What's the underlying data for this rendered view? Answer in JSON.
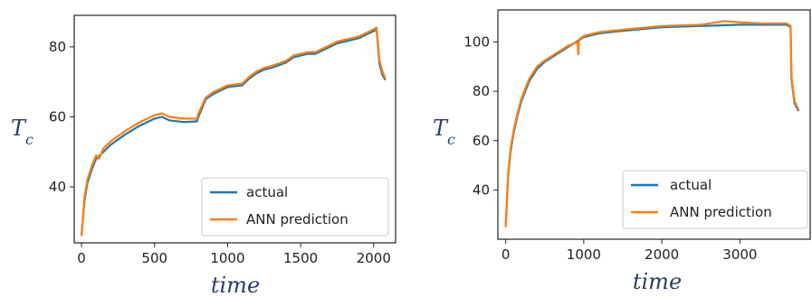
{
  "chart_data": [
    {
      "type": "line",
      "title": "",
      "xlabel": "time",
      "ylabel": "T_c",
      "xlim": [
        -50,
        2150
      ],
      "ylim": [
        24,
        89
      ],
      "xticks": [
        0,
        500,
        1000,
        1500,
        2000
      ],
      "yticks": [
        40,
        60,
        80
      ],
      "legend": "bottom-right",
      "series": [
        {
          "name": "actual",
          "color": "#1f77b4",
          "x": [
            0,
            20,
            40,
            70,
            100,
            150,
            200,
            300,
            400,
            500,
            550,
            600,
            700,
            790,
            800,
            850,
            900,
            1000,
            1100,
            1150,
            1200,
            1250,
            1300,
            1400,
            1450,
            1500,
            1550,
            1600,
            1700,
            1750,
            1800,
            1900,
            1950,
            2000,
            2020,
            2040,
            2060,
            2080
          ],
          "y": [
            26,
            36,
            41,
            45,
            48,
            50,
            52,
            55,
            57.5,
            59.5,
            60,
            59,
            58.5,
            58.7,
            60,
            65,
            66.5,
            68.5,
            69,
            71,
            72.5,
            73.5,
            74,
            75.5,
            77,
            77.5,
            78,
            78,
            80,
            81,
            81.5,
            82.5,
            83.5,
            84.5,
            85,
            75,
            72,
            70.5
          ]
        },
        {
          "name": "ANN prediction",
          "color": "#ff7f0e",
          "x": [
            0,
            20,
            40,
            70,
            100,
            120,
            150,
            200,
            300,
            400,
            500,
            550,
            600,
            700,
            790,
            800,
            850,
            900,
            1000,
            1100,
            1150,
            1200,
            1250,
            1300,
            1400,
            1450,
            1500,
            1550,
            1600,
            1700,
            1750,
            1800,
            1900,
            1950,
            2000,
            2020,
            2040,
            2060,
            2080
          ],
          "y": [
            26,
            37,
            42,
            46,
            49,
            48,
            51,
            53,
            56,
            58.5,
            60.5,
            61,
            60,
            59.5,
            59.5,
            61,
            65.5,
            67,
            69,
            69.5,
            71.5,
            73,
            74,
            74.5,
            76,
            77.5,
            78,
            78.5,
            78.5,
            80.5,
            81.5,
            82,
            83,
            84,
            85,
            85.5,
            76,
            73,
            71
          ]
        }
      ]
    },
    {
      "type": "line",
      "title": "",
      "xlabel": "time",
      "ylabel": "T_c",
      "xlim": [
        -100,
        3900
      ],
      "ylim": [
        20,
        113
      ],
      "xticks": [
        0,
        1000,
        2000,
        3000
      ],
      "yticks": [
        40,
        60,
        80,
        100
      ],
      "legend": "bottom-right",
      "series": [
        {
          "name": "actual",
          "color": "#1f77b4",
          "x": [
            0,
            30,
            60,
            100,
            150,
            200,
            300,
            400,
            500,
            600,
            800,
            900,
            1000,
            1200,
            1500,
            2000,
            2500,
            3000,
            3300,
            3600,
            3650,
            3660,
            3700,
            3750
          ],
          "y": [
            25,
            45,
            55,
            63,
            70,
            76,
            84,
            89,
            92,
            94,
            98,
            100,
            102,
            103.5,
            104.5,
            106,
            106.5,
            107,
            107,
            107,
            106,
            85,
            75,
            72
          ]
        },
        {
          "name": "ANN prediction",
          "color": "#ff7f0e",
          "x": [
            0,
            30,
            60,
            100,
            150,
            200,
            300,
            400,
            500,
            600,
            800,
            920,
            930,
            940,
            1000,
            1200,
            1500,
            2000,
            2500,
            2800,
            3000,
            3300,
            3600,
            3650,
            3660,
            3700,
            3750
          ],
          "y": [
            25,
            46,
            56,
            64,
            71,
            77,
            85,
            90,
            92.5,
            94.5,
            98.5,
            100,
            95,
            101,
            102.5,
            104,
            105,
            106.5,
            107,
            108.5,
            108,
            107.5,
            107.5,
            106.5,
            86,
            76,
            72.5
          ]
        }
      ]
    }
  ]
}
